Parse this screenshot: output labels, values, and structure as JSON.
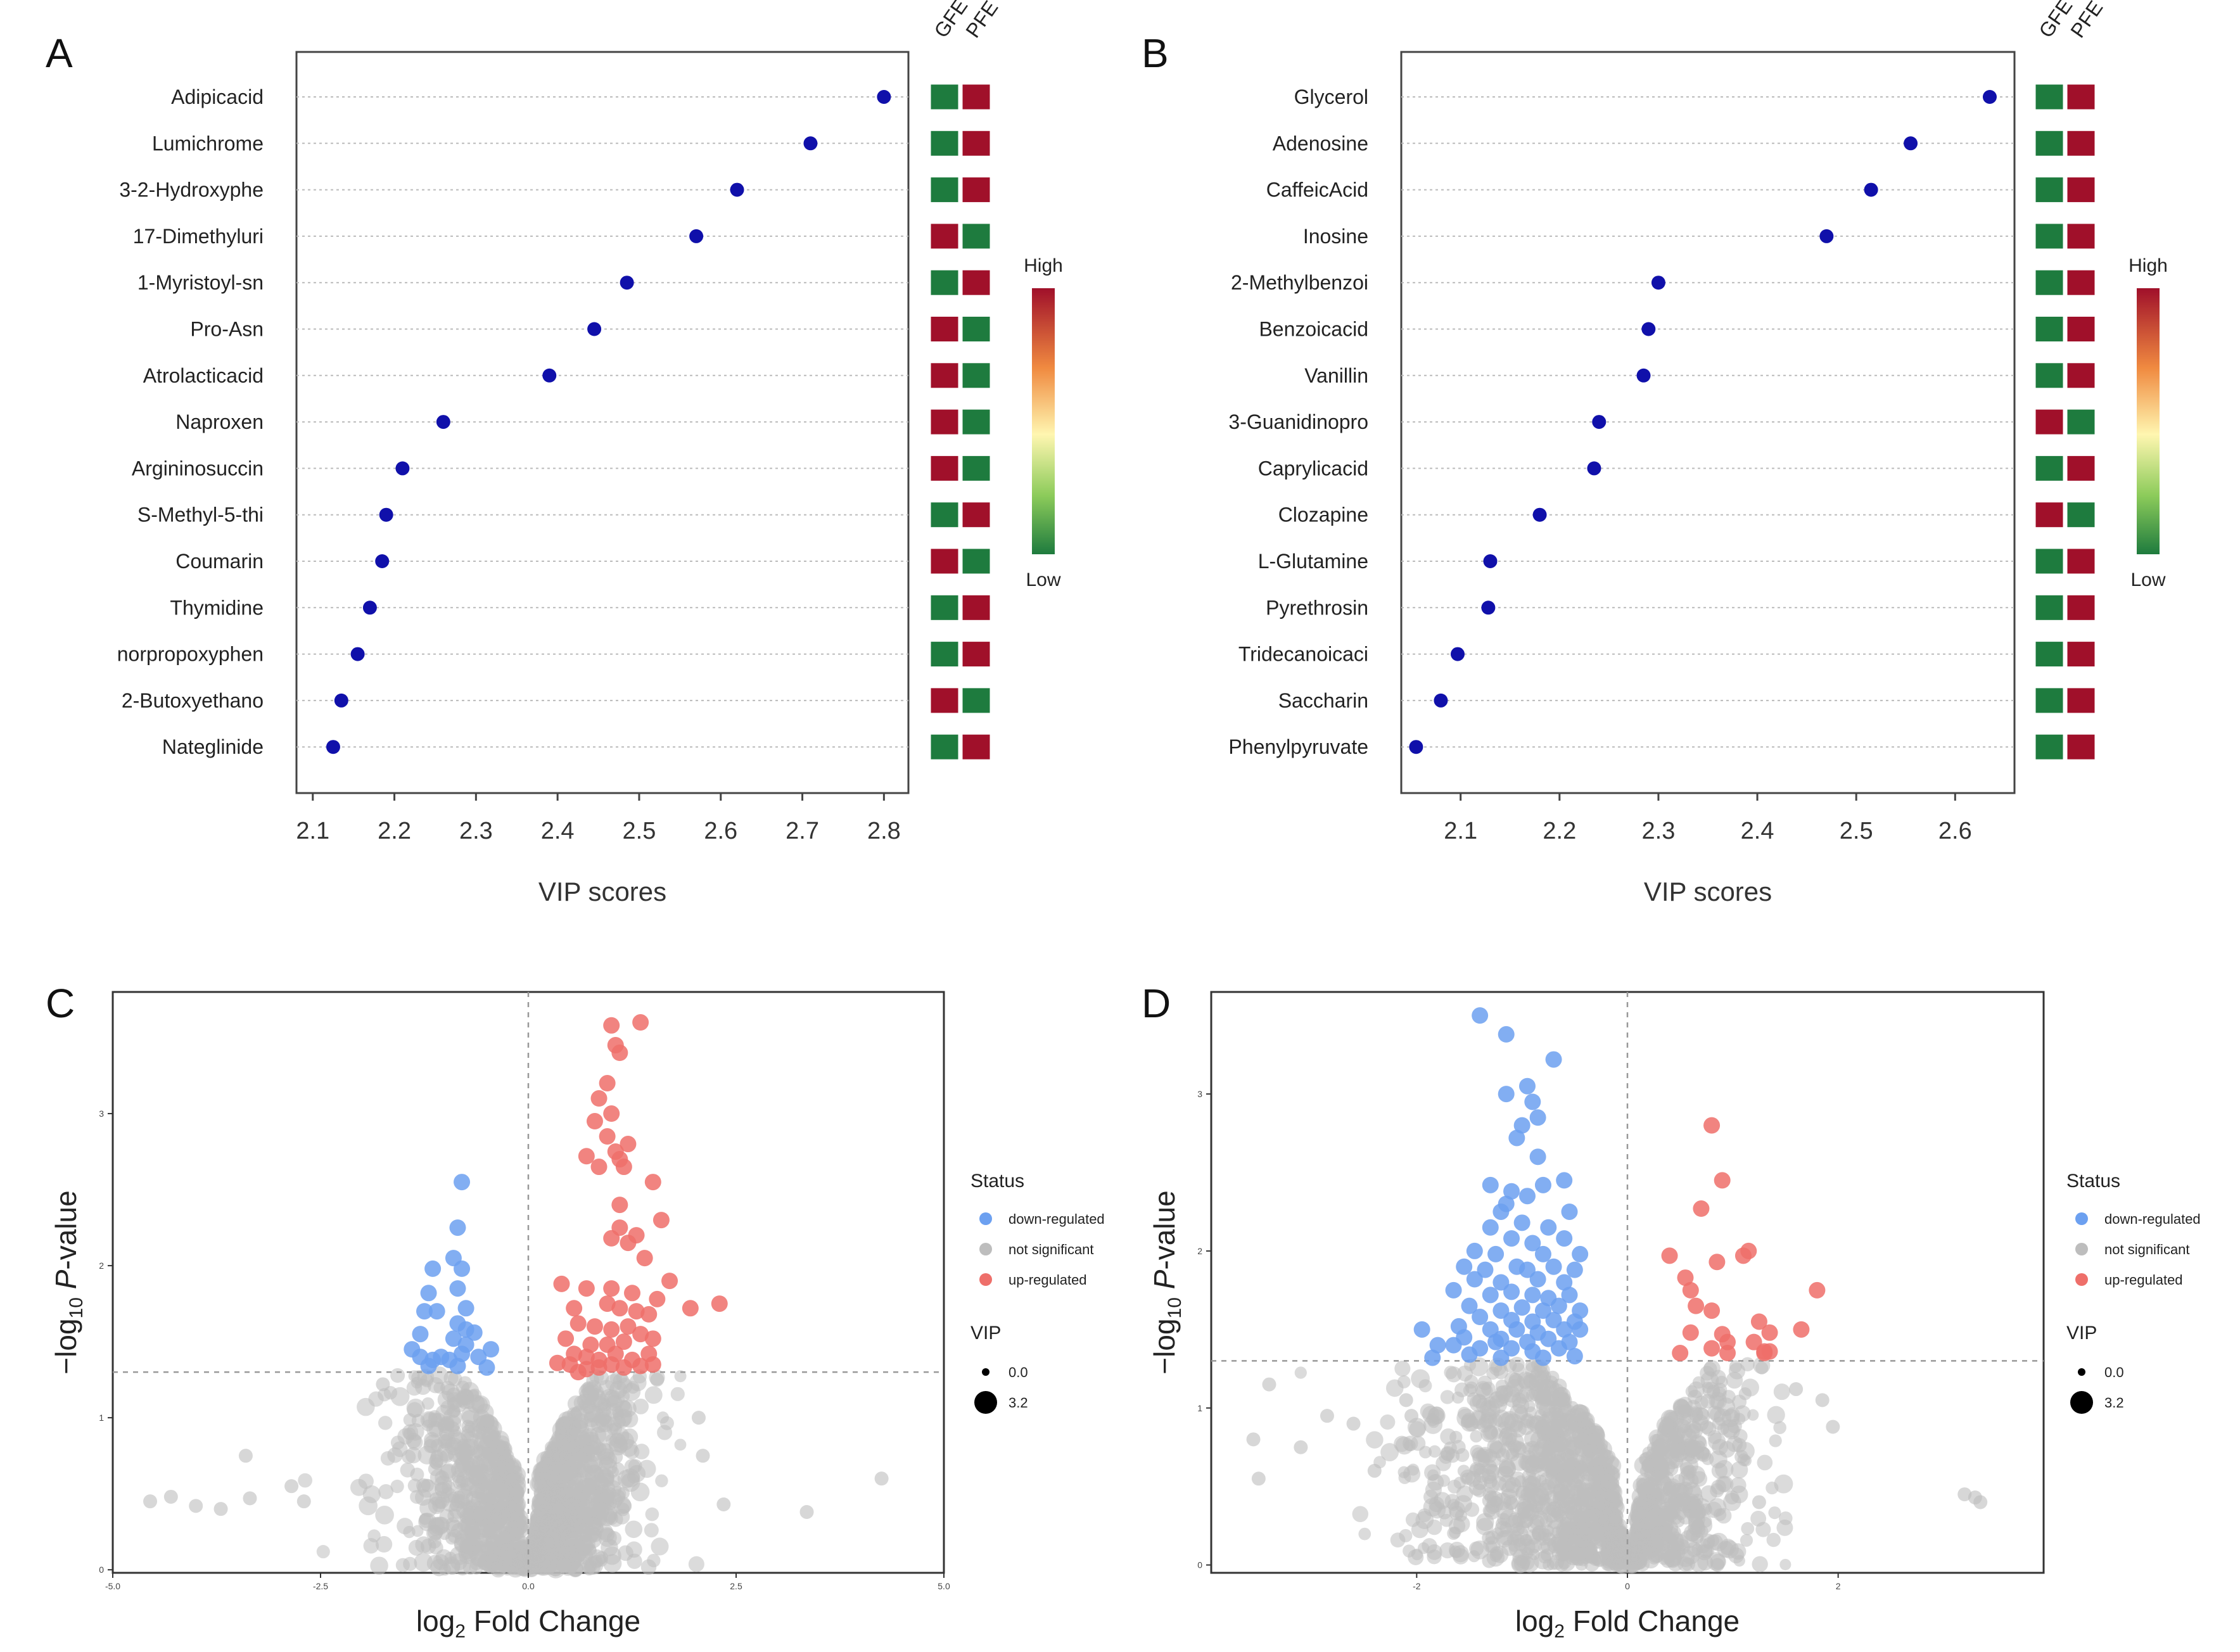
{
  "colors": {
    "point": "#1010AA",
    "green": "#1E7B3E",
    "red": "#A0102A",
    "down": "#6CA0F0",
    "ns": "#BDBDBD",
    "up": "#EE6F6A"
  },
  "chart_data": [
    {
      "panel": "A",
      "type": "scatter",
      "subtype": "vip-dot",
      "xlabel": "VIP scores",
      "xlim": [
        2.08,
        2.83
      ],
      "xticks": [
        2.1,
        2.2,
        2.3,
        2.4,
        2.5,
        2.6,
        2.7,
        2.8
      ],
      "columns": [
        "GFE",
        "PFE"
      ],
      "legend": {
        "high": "High",
        "low": "Low"
      },
      "items": [
        {
          "name": "Adipicacid",
          "vip": 2.8,
          "heat": [
            "green",
            "red"
          ]
        },
        {
          "name": "Lumichrome",
          "vip": 2.71,
          "heat": [
            "green",
            "red"
          ]
        },
        {
          "name": "3-2-Hydroxyphe",
          "vip": 2.62,
          "heat": [
            "green",
            "red"
          ]
        },
        {
          "name": "17-Dimethyluri",
          "vip": 2.57,
          "heat": [
            "red",
            "green"
          ]
        },
        {
          "name": "1-Myristoyl-sn",
          "vip": 2.485,
          "heat": [
            "green",
            "red"
          ]
        },
        {
          "name": "Pro-Asn",
          "vip": 2.445,
          "heat": [
            "red",
            "green"
          ]
        },
        {
          "name": "Atrolacticacid",
          "vip": 2.39,
          "heat": [
            "red",
            "green"
          ]
        },
        {
          "name": "Naproxen",
          "vip": 2.26,
          "heat": [
            "red",
            "green"
          ]
        },
        {
          "name": "Argininosuccin",
          "vip": 2.21,
          "heat": [
            "red",
            "green"
          ]
        },
        {
          "name": "S-Methyl-5-thi",
          "vip": 2.19,
          "heat": [
            "green",
            "red"
          ]
        },
        {
          "name": "Coumarin",
          "vip": 2.185,
          "heat": [
            "red",
            "green"
          ]
        },
        {
          "name": "Thymidine",
          "vip": 2.17,
          "heat": [
            "green",
            "red"
          ]
        },
        {
          "name": "norpropoxyphen",
          "vip": 2.155,
          "heat": [
            "green",
            "red"
          ]
        },
        {
          "name": "2-Butoxyethano",
          "vip": 2.135,
          "heat": [
            "red",
            "green"
          ]
        },
        {
          "name": "Nateglinide",
          "vip": 2.125,
          "heat": [
            "green",
            "red"
          ]
        }
      ]
    },
    {
      "panel": "B",
      "type": "scatter",
      "subtype": "vip-dot",
      "xlabel": "VIP scores",
      "xlim": [
        2.04,
        2.66
      ],
      "xticks": [
        2.1,
        2.2,
        2.3,
        2.4,
        2.5,
        2.6
      ],
      "columns": [
        "GFE",
        "PFE"
      ],
      "legend": {
        "high": "High",
        "low": "Low"
      },
      "items": [
        {
          "name": "Glycerol",
          "vip": 2.635,
          "heat": [
            "green",
            "red"
          ]
        },
        {
          "name": "Adenosine",
          "vip": 2.555,
          "heat": [
            "green",
            "red"
          ]
        },
        {
          "name": "CaffeicAcid",
          "vip": 2.515,
          "heat": [
            "green",
            "red"
          ]
        },
        {
          "name": "Inosine",
          "vip": 2.47,
          "heat": [
            "green",
            "red"
          ]
        },
        {
          "name": "2-Methylbenzoi",
          "vip": 2.3,
          "heat": [
            "green",
            "red"
          ]
        },
        {
          "name": "Benzoicacid",
          "vip": 2.29,
          "heat": [
            "green",
            "red"
          ]
        },
        {
          "name": "Vanillin",
          "vip": 2.285,
          "heat": [
            "green",
            "red"
          ]
        },
        {
          "name": "3-Guanidinopro",
          "vip": 2.24,
          "heat": [
            "red",
            "green"
          ]
        },
        {
          "name": "Caprylicacid",
          "vip": 2.235,
          "heat": [
            "green",
            "red"
          ]
        },
        {
          "name": "Clozapine",
          "vip": 2.18,
          "heat": [
            "red",
            "green"
          ]
        },
        {
          "name": "L-Glutamine",
          "vip": 2.13,
          "heat": [
            "green",
            "red"
          ]
        },
        {
          "name": "Pyrethrosin",
          "vip": 2.128,
          "heat": [
            "green",
            "red"
          ]
        },
        {
          "name": "Tridecanoicaci",
          "vip": 2.097,
          "heat": [
            "green",
            "red"
          ]
        },
        {
          "name": "Saccharin",
          "vip": 2.08,
          "heat": [
            "green",
            "red"
          ]
        },
        {
          "name": "Phenylpyruvate",
          "vip": 2.055,
          "heat": [
            "green",
            "red"
          ]
        }
      ]
    },
    {
      "panel": "C",
      "type": "scatter",
      "subtype": "volcano",
      "xlabel_main": "log",
      "xlabel_sub": "2",
      "xlabel_rest": " Fold Change",
      "ylabel_pre": "−log",
      "ylabel_sub": "10",
      "ylabel_p": "P",
      "ylabel_rest": "-value",
      "xlim": [
        -5.0,
        5.0
      ],
      "ylim": [
        -0.02,
        3.8
      ],
      "xticks": [
        -5.0,
        -2.5,
        0.0,
        2.5,
        5.0
      ],
      "xtick_labels": [
        "-5.0",
        "-2.5",
        "0.0",
        "2.5",
        "5.0"
      ],
      "yticks": [
        0,
        1,
        2,
        3
      ],
      "ythreshold": 1.3,
      "legend": {
        "status_title": "Status",
        "down": "down-regulated",
        "ns": "not significant",
        "up": "up-regulated",
        "vip_title": "VIP",
        "vip_min": "0.0",
        "vip_max": "3.2"
      },
      "down_points": [
        [
          -0.8,
          2.55
        ],
        [
          -0.85,
          2.25
        ],
        [
          -0.9,
          2.05
        ],
        [
          -1.15,
          1.98
        ],
        [
          -0.8,
          1.98
        ],
        [
          -0.85,
          1.85
        ],
        [
          -1.2,
          1.82
        ],
        [
          -1.25,
          1.7
        ],
        [
          -1.1,
          1.7
        ],
        [
          -0.75,
          1.72
        ],
        [
          -0.85,
          1.62
        ],
        [
          -0.75,
          1.58
        ],
        [
          -0.65,
          1.56
        ],
        [
          -1.3,
          1.55
        ],
        [
          -0.9,
          1.52
        ],
        [
          -0.75,
          1.48
        ],
        [
          -1.4,
          1.45
        ],
        [
          -1.3,
          1.4
        ],
        [
          -1.15,
          1.38
        ],
        [
          -1.05,
          1.4
        ],
        [
          -0.95,
          1.38
        ],
        [
          -0.8,
          1.42
        ],
        [
          -0.6,
          1.4
        ],
        [
          -0.45,
          1.45
        ],
        [
          -1.2,
          1.34
        ],
        [
          -0.85,
          1.34
        ],
        [
          -0.5,
          1.33
        ]
      ],
      "up_points": [
        [
          1.35,
          3.6
        ],
        [
          1.0,
          3.58
        ],
        [
          1.05,
          3.45
        ],
        [
          1.1,
          3.4
        ],
        [
          0.95,
          3.2
        ],
        [
          0.85,
          3.1
        ],
        [
          1.0,
          3.0
        ],
        [
          0.8,
          2.95
        ],
        [
          0.95,
          2.85
        ],
        [
          1.05,
          2.75
        ],
        [
          1.1,
          2.7
        ],
        [
          1.15,
          2.65
        ],
        [
          1.2,
          2.8
        ],
        [
          0.85,
          2.65
        ],
        [
          0.7,
          2.72
        ],
        [
          1.5,
          2.55
        ],
        [
          1.1,
          2.4
        ],
        [
          1.6,
          2.3
        ],
        [
          1.1,
          2.25
        ],
        [
          1.3,
          2.2
        ],
        [
          1.0,
          2.18
        ],
        [
          1.2,
          2.15
        ],
        [
          1.4,
          2.05
        ],
        [
          1.7,
          1.9
        ],
        [
          0.4,
          1.88
        ],
        [
          0.7,
          1.85
        ],
        [
          1.0,
          1.85
        ],
        [
          1.25,
          1.82
        ],
        [
          1.55,
          1.78
        ],
        [
          0.95,
          1.75
        ],
        [
          0.55,
          1.72
        ],
        [
          1.1,
          1.72
        ],
        [
          1.3,
          1.7
        ],
        [
          1.45,
          1.68
        ],
        [
          2.3,
          1.75
        ],
        [
          1.95,
          1.72
        ],
        [
          0.6,
          1.62
        ],
        [
          0.8,
          1.6
        ],
        [
          1.0,
          1.58
        ],
        [
          1.2,
          1.6
        ],
        [
          1.35,
          1.55
        ],
        [
          1.5,
          1.52
        ],
        [
          0.45,
          1.52
        ],
        [
          0.75,
          1.48
        ],
        [
          0.95,
          1.48
        ],
        [
          1.15,
          1.5
        ],
        [
          0.55,
          1.42
        ],
        [
          0.7,
          1.4
        ],
        [
          0.85,
          1.38
        ],
        [
          1.05,
          1.42
        ],
        [
          1.25,
          1.38
        ],
        [
          1.45,
          1.42
        ],
        [
          0.35,
          1.36
        ],
        [
          0.5,
          1.35
        ],
        [
          0.7,
          1.32
        ],
        [
          0.85,
          1.33
        ],
        [
          1.0,
          1.35
        ],
        [
          1.15,
          1.33
        ],
        [
          1.35,
          1.34
        ],
        [
          1.5,
          1.35
        ],
        [
          0.6,
          1.3
        ]
      ]
    },
    {
      "panel": "D",
      "type": "scatter",
      "subtype": "volcano",
      "xlabel_main": "log",
      "xlabel_sub": "2",
      "xlabel_rest": " Fold Change",
      "ylabel_pre": "−log",
      "ylabel_sub": "10",
      "ylabel_p": "P",
      "ylabel_rest": "-value",
      "xlim": [
        -3.95,
        3.95
      ],
      "ylim": [
        -0.05,
        3.65
      ],
      "xticks": [
        -2,
        0,
        2
      ],
      "xtick_labels": [
        "-2",
        "0",
        "2"
      ],
      "yticks": [
        0,
        1,
        2,
        3
      ],
      "ythreshold": 1.3,
      "legend": {
        "status_title": "Status",
        "down": "down-regulated",
        "ns": "not significant",
        "up": "up-regulated",
        "vip_title": "VIP",
        "vip_min": "0.0",
        "vip_max": "3.2"
      },
      "down_points": [
        [
          -1.4,
          3.5
        ],
        [
          -1.15,
          3.38
        ],
        [
          -0.7,
          3.22
        ],
        [
          -0.95,
          3.05
        ],
        [
          -1.15,
          3.0
        ],
        [
          -0.9,
          2.95
        ],
        [
          -0.85,
          2.85
        ],
        [
          -1.0,
          2.8
        ],
        [
          -1.05,
          2.72
        ],
        [
          -0.85,
          2.6
        ],
        [
          -0.6,
          2.45
        ],
        [
          -1.3,
          2.42
        ],
        [
          -0.8,
          2.42
        ],
        [
          -1.1,
          2.38
        ],
        [
          -0.95,
          2.35
        ],
        [
          -1.15,
          2.3
        ],
        [
          -1.2,
          2.25
        ],
        [
          -0.55,
          2.25
        ],
        [
          -1.3,
          2.15
        ],
        [
          -1.0,
          2.18
        ],
        [
          -0.75,
          2.15
        ],
        [
          -1.1,
          2.08
        ],
        [
          -0.9,
          2.05
        ],
        [
          -0.6,
          2.08
        ],
        [
          -1.45,
          2.0
        ],
        [
          -1.25,
          1.98
        ],
        [
          -0.8,
          1.98
        ],
        [
          -0.45,
          1.98
        ],
        [
          -1.55,
          1.9
        ],
        [
          -1.35,
          1.88
        ],
        [
          -1.05,
          1.9
        ],
        [
          -0.95,
          1.88
        ],
        [
          -0.7,
          1.9
        ],
        [
          -0.5,
          1.88
        ],
        [
          -1.45,
          1.82
        ],
        [
          -1.2,
          1.8
        ],
        [
          -0.85,
          1.82
        ],
        [
          -0.6,
          1.8
        ],
        [
          -1.65,
          1.75
        ],
        [
          -1.3,
          1.72
        ],
        [
          -1.1,
          1.74
        ],
        [
          -0.9,
          1.72
        ],
        [
          -0.75,
          1.7
        ],
        [
          -0.55,
          1.72
        ],
        [
          -1.5,
          1.65
        ],
        [
          -1.2,
          1.62
        ],
        [
          -1.0,
          1.64
        ],
        [
          -0.8,
          1.62
        ],
        [
          -0.65,
          1.65
        ],
        [
          -0.45,
          1.62
        ],
        [
          -1.4,
          1.58
        ],
        [
          -1.1,
          1.56
        ],
        [
          -0.9,
          1.55
        ],
        [
          -0.7,
          1.56
        ],
        [
          -0.5,
          1.55
        ],
        [
          -1.95,
          1.5
        ],
        [
          -1.6,
          1.52
        ],
        [
          -1.3,
          1.5
        ],
        [
          -1.05,
          1.5
        ],
        [
          -0.85,
          1.48
        ],
        [
          -0.6,
          1.5
        ],
        [
          -0.45,
          1.5
        ],
        [
          -1.55,
          1.45
        ],
        [
          -1.2,
          1.44
        ],
        [
          -0.95,
          1.42
        ],
        [
          -0.75,
          1.44
        ],
        [
          -0.55,
          1.42
        ],
        [
          -1.65,
          1.4
        ],
        [
          -1.4,
          1.38
        ],
        [
          -1.1,
          1.38
        ],
        [
          -0.9,
          1.36
        ],
        [
          -0.65,
          1.38
        ],
        [
          -1.85,
          1.32
        ],
        [
          -1.5,
          1.34
        ],
        [
          -1.2,
          1.32
        ],
        [
          -0.8,
          1.32
        ],
        [
          -0.5,
          1.33
        ],
        [
          -1.8,
          1.4
        ],
        [
          -1.25,
          1.42
        ]
      ],
      "up_points": [
        [
          0.8,
          2.8
        ],
        [
          0.9,
          2.45
        ],
        [
          0.7,
          2.27
        ],
        [
          0.4,
          1.97
        ],
        [
          1.15,
          2.0
        ],
        [
          1.1,
          1.97
        ],
        [
          0.85,
          1.93
        ],
        [
          0.55,
          1.83
        ],
        [
          0.6,
          1.75
        ],
        [
          1.8,
          1.75
        ],
        [
          0.65,
          1.65
        ],
        [
          0.8,
          1.62
        ],
        [
          1.25,
          1.55
        ],
        [
          1.65,
          1.5
        ],
        [
          0.6,
          1.48
        ],
        [
          0.9,
          1.47
        ],
        [
          0.95,
          1.42
        ],
        [
          1.35,
          1.48
        ],
        [
          1.2,
          1.42
        ],
        [
          0.8,
          1.38
        ],
        [
          0.5,
          1.35
        ],
        [
          1.3,
          1.35
        ],
        [
          0.95,
          1.35
        ],
        [
          1.3,
          1.36
        ],
        [
          1.35,
          1.36
        ]
      ]
    }
  ]
}
